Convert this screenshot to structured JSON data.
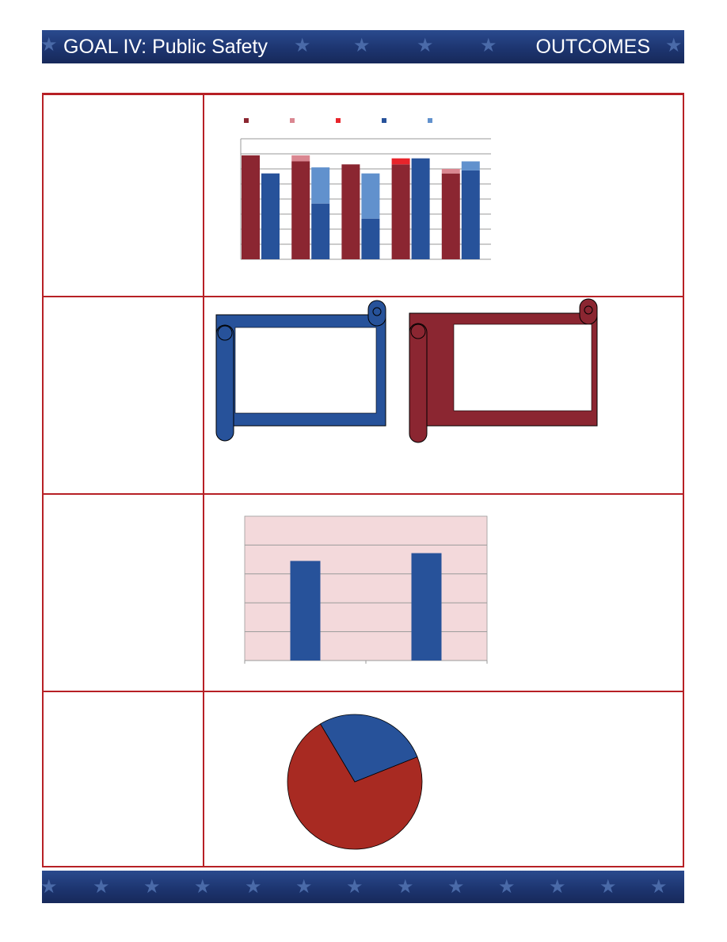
{
  "header": {
    "title": "GOAL IV: Public Safety",
    "section": "OUTCOMES"
  },
  "colors": {
    "brand_blue": "#1d3570",
    "rule_red": "#b72025",
    "series_dark_red": "#8b2631",
    "series_light_pink": "#da8791",
    "series_bright_red": "#e8242b",
    "series_blue": "#27529a",
    "series_light_blue": "#6191cd",
    "plot_bg_pink": "#f3d9db",
    "pie_red": "#a82a22"
  },
  "chart_data": [
    {
      "type": "bar",
      "stacked_pairs": true,
      "categories": [
        "",
        "",
        "",
        "",
        ""
      ],
      "ylim": [
        0,
        8
      ],
      "grid": true,
      "legend": "top",
      "series": [
        {
          "color": "#8b2631",
          "values": [
            6.9,
            6.5,
            6.3,
            6.3,
            5.7
          ],
          "stack": "A"
        },
        {
          "color": "#da8791",
          "values": [
            0,
            0.4,
            0,
            0,
            0.3
          ],
          "stack": "A"
        },
        {
          "color": "#e8242b",
          "values": [
            0,
            0,
            0,
            0.4,
            0
          ],
          "stack": "A"
        },
        {
          "color": "#27529a",
          "values": [
            5.7,
            3.7,
            2.7,
            6.7,
            5.9
          ],
          "stack": "B"
        },
        {
          "color": "#6191cd",
          "values": [
            0,
            2.4,
            3.0,
            0,
            0.6
          ],
          "stack": "B"
        }
      ]
    },
    {
      "type": "bar",
      "categories": [
        "",
        ""
      ],
      "ylim": [
        0,
        5
      ],
      "grid": true,
      "background": "#f3d9db",
      "values": [
        3.45,
        3.72
      ],
      "color": "#27529a"
    },
    {
      "type": "pie",
      "labels": [
        "",
        ""
      ],
      "values": [
        72.5,
        27.5
      ],
      "colors": [
        "#a82a22",
        "#27529a"
      ]
    }
  ]
}
